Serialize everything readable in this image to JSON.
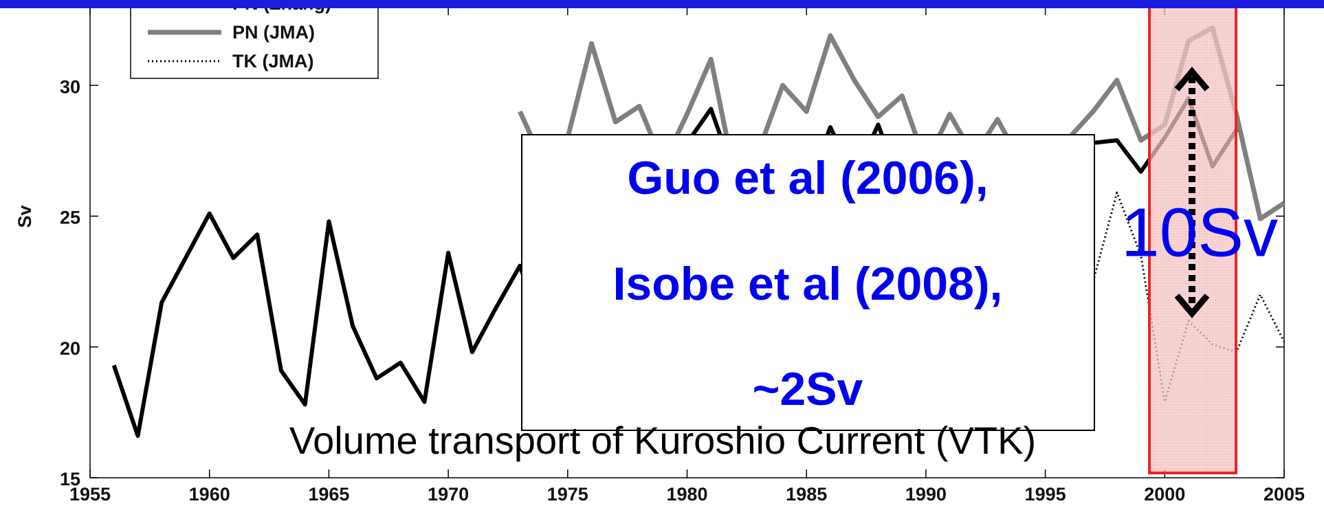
{
  "chart_data": {
    "type": "line",
    "ylabel": "Sv",
    "xlim": [
      1955,
      2005
    ],
    "xticks": [
      1955,
      1960,
      1965,
      1970,
      1975,
      1980,
      1985,
      1990,
      1995,
      2000,
      2005
    ],
    "ylim": [
      15,
      33
    ],
    "yticks": [
      15,
      20,
      25,
      30
    ],
    "series": [
      {
        "name": "PN (Zhang)",
        "color": "#000000",
        "style": "solid",
        "x": [
          1956,
          1957,
          1958,
          1959,
          1960,
          1961,
          1962,
          1963,
          1964,
          1965,
          1966,
          1967,
          1968,
          1969,
          1970,
          1971,
          1972,
          1973,
          1974,
          1975,
          1976,
          1977,
          1978,
          1979,
          1980,
          1981,
          1982,
          1983,
          1984,
          1985,
          1986,
          1987,
          1988,
          1989,
          1990,
          1991,
          1992,
          1993,
          1994,
          1995,
          1996,
          1997,
          1998,
          1999,
          2000,
          2001,
          2002,
          2003
        ],
        "values": [
          19.3,
          16.6,
          21.7,
          23.4,
          25.1,
          23.4,
          24.3,
          19.1,
          17.8,
          24.8,
          20.8,
          18.8,
          19.4,
          17.9,
          23.6,
          19.8,
          21.5,
          23.1,
          20.5,
          22.0,
          24.0,
          23.0,
          26.0,
          25.0,
          27.8,
          29.1,
          26.5,
          25.5,
          27.0,
          26.0,
          28.4,
          26.5,
          28.5,
          26.0,
          25.0,
          26.5,
          26.0,
          25.5,
          27.0,
          26.5,
          27.8,
          27.8,
          27.9,
          26.7,
          28.0,
          29.5,
          26.9,
          28.3
        ]
      },
      {
        "name": "PN (JMA)",
        "color": "#808080",
        "style": "solid",
        "x": [
          1973,
          1974,
          1975,
          1976,
          1977,
          1978,
          1979,
          1980,
          1981,
          1982,
          1983,
          1984,
          1985,
          1986,
          1987,
          1988,
          1989,
          1990,
          1991,
          1992,
          1993,
          1994,
          1995,
          1996,
          1997,
          1998,
          1999,
          2000,
          2001,
          2002,
          2003,
          2004,
          2005
        ],
        "values": [
          29.0,
          27.0,
          28.0,
          31.6,
          28.6,
          29.2,
          27.0,
          28.9,
          31.0,
          26.5,
          27.5,
          30.0,
          29.0,
          31.9,
          30.2,
          28.8,
          29.6,
          27.0,
          28.9,
          27.3,
          28.7,
          27.0,
          27.5,
          28.0,
          29.0,
          30.2,
          27.9,
          28.5,
          31.7,
          32.2,
          28.9,
          24.9,
          25.5
        ]
      },
      {
        "name": "TK (JMA)",
        "color": "#000000",
        "style": "dotted",
        "x": [
          1997,
          1998,
          1999,
          2000,
          2001,
          2002,
          2003,
          2004,
          2005
        ],
        "values": [
          22.5,
          25.9,
          23.5,
          17.9,
          21.0,
          20.1,
          19.8,
          22.0,
          20.2
        ]
      }
    ],
    "annotations": {
      "box_lines": [
        "Guo et al (2006),",
        "Isobe et al (2008),",
        "~2Sv"
      ],
      "caption": "Volume transport of Kuroshio Current (VTK)",
      "highlight_label": "10Sv"
    }
  }
}
